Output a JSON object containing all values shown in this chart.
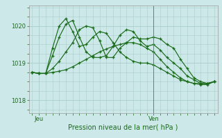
{
  "bg_color": "#cce8e8",
  "grid_color": "#aacccc",
  "line_color": "#1a6b1a",
  "title": "Pression niveau de la mer( hPa )",
  "ylabel_ticks": [
    1018,
    1019,
    1020
  ],
  "ylim": [
    1017.65,
    1020.55
  ],
  "total_points": 28,
  "vline_x": 18,
  "series1": [
    1018.75,
    1018.72,
    1018.72,
    1018.85,
    1019.05,
    1019.3,
    1019.55,
    1019.9,
    1020.0,
    1019.95,
    1019.6,
    1019.15,
    1019.15,
    1019.4,
    1019.55,
    1019.7,
    1019.65,
    1019.65,
    1019.7,
    1019.65,
    1019.5,
    1019.4,
    1019.1,
    1018.85,
    1018.6,
    1018.5,
    1018.45,
    1018.5
  ],
  "series2": [
    1018.75,
    1018.72,
    1018.72,
    1019.2,
    1019.7,
    1020.05,
    1020.15,
    1019.7,
    1019.3,
    1019.15,
    1019.15,
    1019.2,
    1019.45,
    1019.75,
    1019.9,
    1019.85,
    1019.6,
    1019.45,
    1019.5,
    1019.35,
    1019.15,
    1019.0,
    1018.85,
    1018.65,
    1018.55,
    1018.45,
    1018.45,
    1018.5
  ],
  "series3": [
    1018.75,
    1018.72,
    1018.72,
    1019.4,
    1020.0,
    1020.2,
    1019.85,
    1019.45,
    1019.5,
    1019.7,
    1019.85,
    1019.8,
    1019.55,
    1019.3,
    1019.15,
    1019.05,
    1019.0,
    1019.0,
    1018.95,
    1018.85,
    1018.75,
    1018.65,
    1018.55,
    1018.5,
    1018.45,
    1018.45,
    1018.45,
    1018.5
  ],
  "series4": [
    1018.75,
    1018.72,
    1018.72,
    1018.75,
    1018.78,
    1018.82,
    1018.9,
    1019.0,
    1019.1,
    1019.2,
    1019.3,
    1019.38,
    1019.45,
    1019.5,
    1019.55,
    1019.55,
    1019.5,
    1019.4,
    1019.3,
    1019.1,
    1018.9,
    1018.75,
    1018.6,
    1018.5,
    1018.45,
    1018.42,
    1018.42,
    1018.5
  ]
}
